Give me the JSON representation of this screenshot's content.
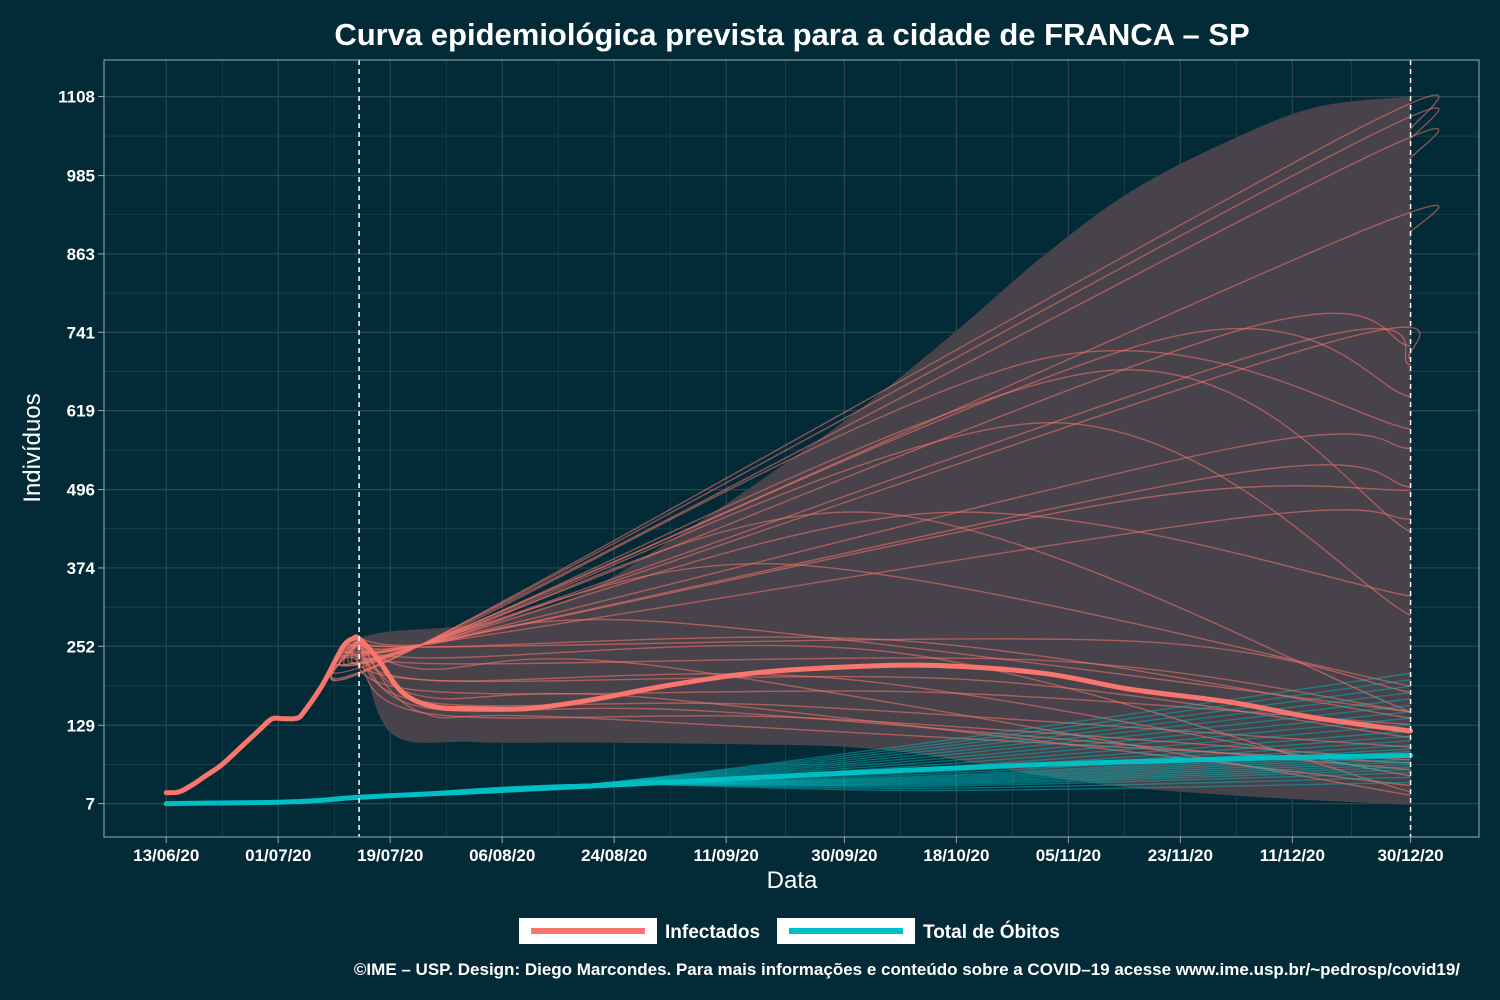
{
  "chart_data": {
    "type": "line",
    "title": "Curva epidemiológica prevista para a cidade de FRANCA – SP",
    "xlabel": "Data",
    "ylabel": "Indivíduos",
    "x_ticks": [
      "13/06/20",
      "01/07/20",
      "19/07/20",
      "06/08/20",
      "24/08/20",
      "11/09/20",
      "30/09/20",
      "18/10/20",
      "05/11/20",
      "23/11/20",
      "11/12/20",
      "30/12/20"
    ],
    "y_ticks": [
      "7",
      "129",
      "252",
      "374",
      "496",
      "619",
      "741",
      "863",
      "985",
      "1108"
    ],
    "ylim": [
      -45,
      1165
    ],
    "xlim": [
      "2020-06-03",
      "2021-01-10"
    ],
    "forecast_start": "2020-07-14",
    "forecast_end": "2020-12-30",
    "grid": true,
    "legend_position": "bottom",
    "colors": {
      "infectados": "#f8766d",
      "obitos": "#00bfc4",
      "band": "#48424a",
      "background": "#022b37",
      "grid": "#284852",
      "frame": "#9aa9ae"
    },
    "series": [
      {
        "name": "Infectados",
        "points": [
          [
            "2020-06-13",
            24
          ],
          [
            "2020-06-15",
            25
          ],
          [
            "2020-06-17",
            35
          ],
          [
            "2020-06-19",
            48
          ],
          [
            "2020-06-22",
            68
          ],
          [
            "2020-06-25",
            95
          ],
          [
            "2020-06-28",
            122
          ],
          [
            "2020-06-30",
            139
          ],
          [
            "2020-07-02",
            139
          ],
          [
            "2020-07-04",
            140
          ],
          [
            "2020-07-05",
            148
          ],
          [
            "2020-07-08",
            190
          ],
          [
            "2020-07-11",
            245
          ],
          [
            "2020-07-12",
            258
          ],
          [
            "2020-07-13",
            264
          ],
          [
            "2020-07-14",
            264
          ],
          [
            "2020-07-17",
            232
          ],
          [
            "2020-07-21",
            180
          ],
          [
            "2020-07-26",
            158
          ],
          [
            "2020-08-01",
            155
          ],
          [
            "2020-08-10",
            155
          ],
          [
            "2020-08-20",
            168
          ],
          [
            "2020-09-01",
            190
          ],
          [
            "2020-09-15",
            210
          ],
          [
            "2020-10-01",
            220
          ],
          [
            "2020-10-15",
            222
          ],
          [
            "2020-11-01",
            210
          ],
          [
            "2020-11-15",
            185
          ],
          [
            "2020-12-01",
            165
          ],
          [
            "2020-12-15",
            140
          ],
          [
            "2020-12-30",
            120
          ]
        ]
      },
      {
        "name": "Total de Óbitos",
        "points": [
          [
            "2020-06-13",
            7
          ],
          [
            "2020-06-20",
            8
          ],
          [
            "2020-07-01",
            9
          ],
          [
            "2020-07-08",
            12
          ],
          [
            "2020-07-14",
            17
          ],
          [
            "2020-08-01",
            25
          ],
          [
            "2020-09-01",
            40
          ],
          [
            "2020-10-01",
            55
          ],
          [
            "2020-11-01",
            68
          ],
          [
            "2020-12-01",
            77
          ],
          [
            "2020-12-30",
            82
          ]
        ]
      }
    ],
    "uncertainty_band": {
      "upper": [
        [
          "2020-07-14",
          265
        ],
        [
          "2020-07-19",
          275
        ],
        [
          "2020-08-01",
          285
        ],
        [
          "2020-08-10",
          305
        ],
        [
          "2020-08-20",
          340
        ],
        [
          "2020-09-01",
          410
        ],
        [
          "2020-09-15",
          500
        ],
        [
          "2020-10-01",
          610
        ],
        [
          "2020-10-17",
          735
        ],
        [
          "2020-11-01",
          860
        ],
        [
          "2020-11-15",
          960
        ],
        [
          "2020-12-01",
          1040
        ],
        [
          "2020-12-15",
          1092
        ],
        [
          "2020-12-30",
          1108
        ]
      ],
      "lower": [
        [
          "2020-07-14",
          264
        ],
        [
          "2020-07-19",
          118
        ],
        [
          "2020-08-01",
          103
        ],
        [
          "2020-08-20",
          102
        ],
        [
          "2020-09-15",
          99
        ],
        [
          "2020-10-01",
          95
        ],
        [
          "2020-10-15",
          80
        ],
        [
          "2020-11-01",
          50
        ],
        [
          "2020-11-15",
          32
        ],
        [
          "2020-12-01",
          20
        ],
        [
          "2020-12-15",
          12
        ],
        [
          "2020-12-30",
          5
        ]
      ]
    },
    "scenarios_infectados": [
      {
        "mid": [
          "2020-09-20",
          160
        ],
        "end": 95
      },
      {
        "mid": [
          "2020-09-10",
          150
        ],
        "end": 60
      },
      {
        "mid": [
          "2020-10-15",
          180
        ],
        "end": 130
      },
      {
        "mid": [
          "2020-09-25",
          140
        ],
        "end": 75
      },
      {
        "mid": [
          "2020-10-20",
          200
        ],
        "end": 110
      },
      {
        "mid": [
          "2020-08-20",
          140
        ],
        "end": 70
      },
      {
        "mid": [
          "2020-11-01",
          230
        ],
        "end": 150
      },
      {
        "mid": [
          "2020-09-01",
          170
        ],
        "end": 35
      },
      {
        "mid": [
          "2020-10-01",
          200
        ],
        "end": 50
      },
      {
        "mid": [
          "2020-10-10",
          260
        ],
        "end": 140
      },
      {
        "mid": [
          "2020-11-15",
          260
        ],
        "end": 180
      },
      {
        "mid": [
          "2020-09-01",
          220
        ],
        "end": 20
      },
      {
        "mid": [
          "2020-10-10",
          240
        ],
        "end": 25
      },
      {
        "mid": [
          "2020-12-01",
          450
        ],
        "end": 450
      },
      {
        "mid": [
          "2020-11-15",
          480
        ],
        "end": 495
      },
      {
        "mid": [
          "2020-12-01",
          560
        ],
        "end": 560
      },
      {
        "mid": [
          "2020-11-10",
          680
        ],
        "end": 430
      },
      {
        "mid": [
          "2020-10-15",
          460
        ],
        "end": 330
      },
      {
        "mid": [
          "2020-11-01",
          700
        ],
        "end": 590
      },
      {
        "mid": [
          "2020-12-01",
          740
        ],
        "end": 720
      },
      {
        "mid": [
          "2020-12-15",
          720
        ],
        "end": 700
      },
      {
        "mid": [
          "2020-11-20",
          730
        ],
        "end": 640
      },
      {
        "mid": [
          "2020-12-10",
          720
        ],
        "end": 690
      },
      {
        "mid": [
          "2020-12-20",
          1030
        ],
        "end": 1040
      },
      {
        "mid": [
          "2020-12-20",
          1050
        ],
        "end": 1055
      },
      {
        "mid": [
          "2020-12-20",
          1000
        ],
        "end": 1010
      },
      {
        "mid": [
          "2020-12-20",
          890
        ],
        "end": 895
      },
      {
        "mid": [
          "2020-10-05",
          460
        ],
        "end": 150
      },
      {
        "mid": [
          "2020-09-20",
          380
        ],
        "end": 190
      },
      {
        "mid": [
          "2020-09-01",
          290
        ],
        "end": 150
      },
      {
        "mid": [
          "2020-11-01",
          600
        ],
        "end": 300
      },
      {
        "mid": [
          "2020-12-01",
          520
        ],
        "end": 500
      }
    ],
    "scenarios_obitos_end": [
      40,
      48,
      55,
      60,
      64,
      68,
      72,
      76,
      80,
      84,
      88,
      92,
      98,
      105,
      112,
      120,
      130,
      140,
      150,
      160,
      170,
      180,
      190,
      200,
      210
    ]
  },
  "legend": {
    "infectados": "Infectados",
    "obitos": "Total de Óbitos"
  },
  "caption": "©IME – USP. Design: Diego Marcondes. Para mais informações e conteúdo sobre a COVID–19 acesse www.ime.usp.br/~pedrosp/covid19/"
}
